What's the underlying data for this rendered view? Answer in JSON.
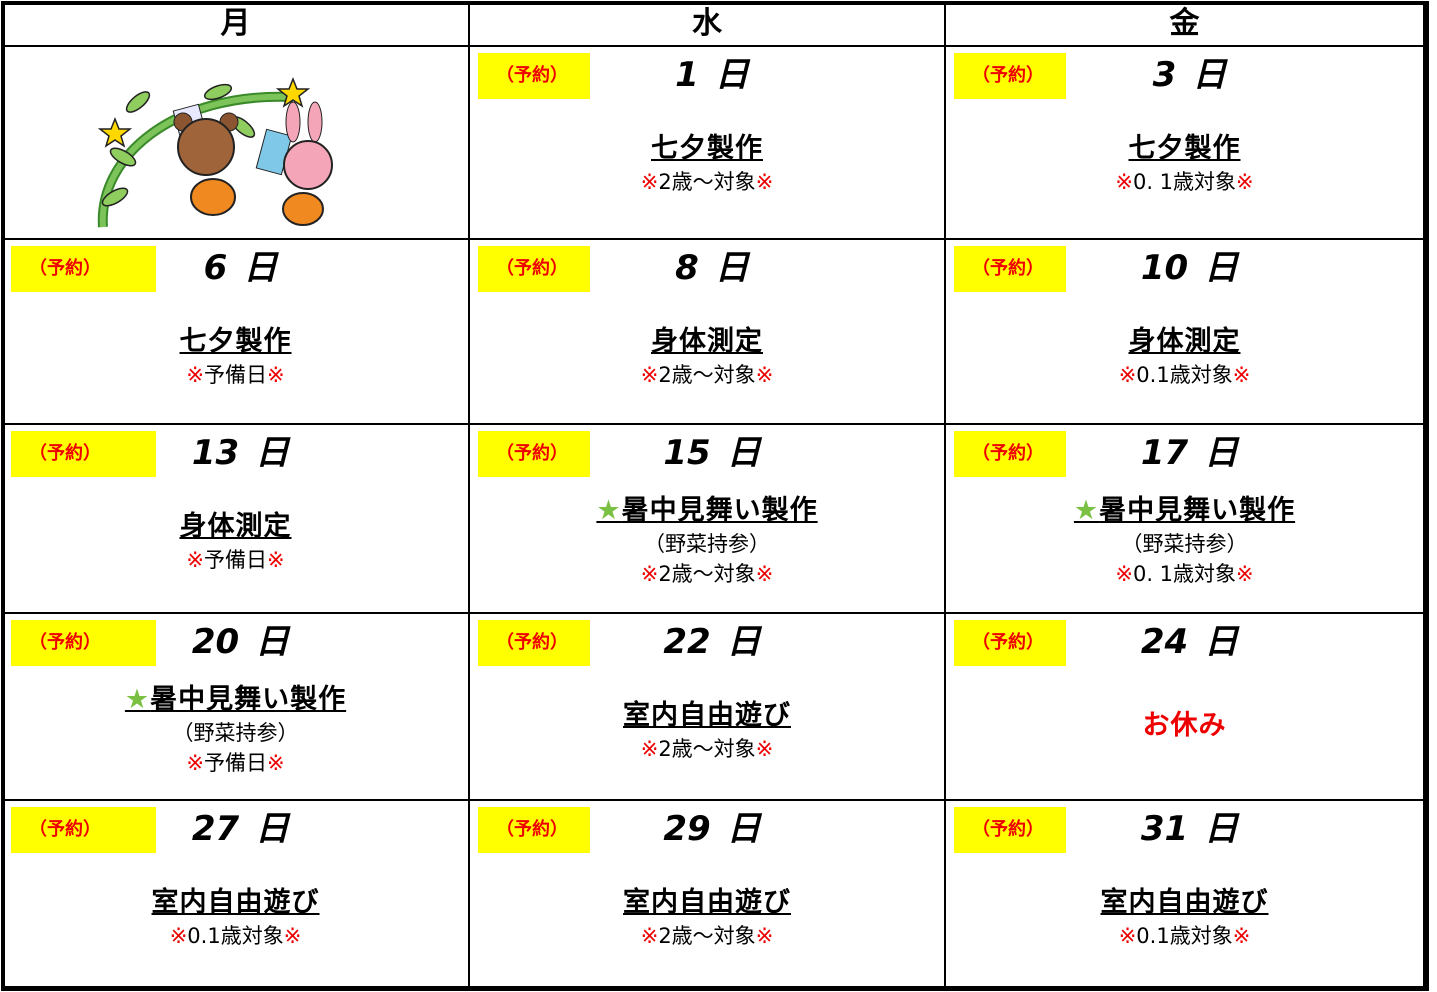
{
  "header": {
    "days": [
      "月",
      "水",
      "金"
    ]
  },
  "rows": [
    [
      null,
      {
        "reserve": "（予約）",
        "day": "1",
        "unit": "日",
        "title": "七夕製作",
        "note": {
          "pre": "※",
          "text": "2歳～対象",
          "post": "※"
        }
      },
      {
        "reserve": "（予約）",
        "day": "3",
        "unit": "日",
        "title": "七夕製作",
        "note": {
          "pre": "※",
          "text": "0. 1歳対象",
          "post": "※"
        }
      }
    ],
    [
      {
        "reserve": "（予約）",
        "day": "6",
        "unit": "日",
        "title": "七夕製作",
        "note": {
          "pre": "※",
          "text": "予備日",
          "post": "※"
        }
      },
      {
        "reserve": "（予約）",
        "day": "8",
        "unit": "日",
        "title": "身体測定",
        "note": {
          "pre": "※",
          "text": "2歳～対象",
          "post": "※"
        }
      },
      {
        "reserve": "（予約）",
        "day": "10",
        "unit": "日",
        "title": "身体測定",
        "note": {
          "pre": "※",
          "text": "0.1歳対象",
          "post": "※"
        }
      }
    ],
    [
      {
        "reserve": "（予約）",
        "day": "13",
        "unit": "日",
        "title": "身体測定",
        "note": {
          "pre": "※",
          "text": "予備日",
          "post": "※"
        }
      },
      {
        "reserve": "（予約）",
        "day": "15",
        "unit": "日",
        "star": "★",
        "title": "暑中見舞い製作",
        "sub": "（野菜持参）",
        "note": {
          "pre": "※",
          "text": "2歳～対象",
          "post": "※"
        }
      },
      {
        "reserve": "（予約）",
        "day": "17",
        "unit": "日",
        "star": "★",
        "title": "暑中見舞い製作",
        "sub": "（野菜持参）",
        "note": {
          "pre": "※",
          "text": "0. 1歳対象",
          "post": "※"
        }
      }
    ],
    [
      {
        "reserve": "（予約）",
        "day": "20",
        "unit": "日",
        "star": "★",
        "title": "暑中見舞い製作",
        "sub": "（野菜持参）",
        "note": {
          "pre": "※",
          "text": "予備日",
          "post": "※"
        }
      },
      {
        "reserve": "（予約）",
        "day": "22",
        "unit": "日",
        "title": "室内自由遊び",
        "note": {
          "pre": "※",
          "text": "2歳～対象",
          "post": "※"
        }
      },
      {
        "reserve": "（予約）",
        "day": "24",
        "unit": "日",
        "title": "お休み",
        "title_color": "#ee0000"
      }
    ],
    [
      {
        "reserve": "（予約）",
        "day": "27",
        "unit": "日",
        "title": "室内自由遊び",
        "note": {
          "pre": "※",
          "text": "0.1歳対象",
          "post": "※"
        }
      },
      {
        "reserve": "（予約）",
        "day": "29",
        "unit": "日",
        "title": "室内自由遊び",
        "note": {
          "pre": "※",
          "text": "2歳～対象",
          "post": "※"
        }
      },
      {
        "reserve": "（予約）",
        "day": "31",
        "unit": "日",
        "title": "室内自由遊び",
        "note": {
          "pre": "※",
          "text": "0.1歳対象",
          "post": "※"
        }
      }
    ]
  ]
}
